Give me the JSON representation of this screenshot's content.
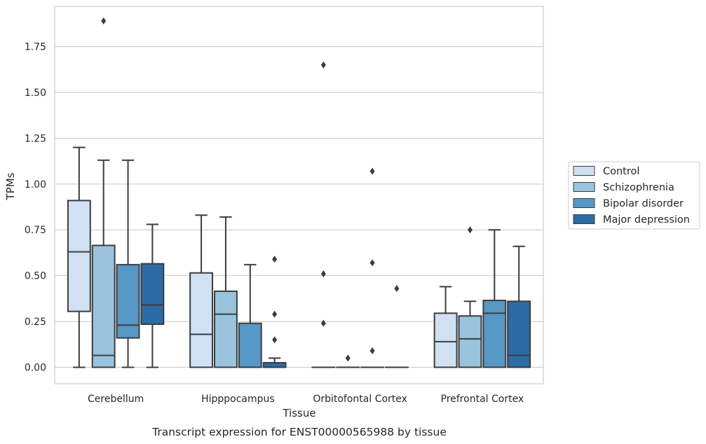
{
  "chart_data": {
    "type": "box",
    "title": "",
    "caption": "Transcript expression for ENST00000565988 by tissue",
    "xlabel": "Tissue",
    "ylabel": "TPMs",
    "ylim": [
      -0.09,
      1.97
    ],
    "yticks": [
      "0.00",
      "0.25",
      "0.50",
      "0.75",
      "1.00",
      "1.25",
      "1.50",
      "1.75"
    ],
    "grid": true,
    "legend_position": "right",
    "categories": [
      "Cerebellum",
      "Hipppocampus",
      "Orbitofontal Cortex",
      "Prefrontal Cortex"
    ],
    "series": [
      {
        "name": "Control",
        "color": "#cfe1f2",
        "boxes": [
          {
            "whislo": 0.0,
            "q1": 0.305,
            "med": 0.63,
            "q3": 0.91,
            "whishi": 1.2,
            "fliers": []
          },
          {
            "whislo": 0.0,
            "q1": 0.0,
            "med": 0.18,
            "q3": 0.515,
            "whishi": 0.83,
            "fliers": []
          },
          {
            "whislo": 0.0,
            "q1": 0.0,
            "med": 0.0,
            "q3": 0.0,
            "whishi": 0.0,
            "fliers": [
              1.65,
              0.51,
              0.24
            ]
          },
          {
            "whislo": 0.0,
            "q1": 0.0,
            "med": 0.14,
            "q3": 0.295,
            "whishi": 0.44,
            "fliers": []
          }
        ]
      },
      {
        "name": "Schizophrenia",
        "color": "#9ac4de",
        "boxes": [
          {
            "whislo": 0.0,
            "q1": 0.0,
            "med": 0.065,
            "q3": 0.665,
            "whishi": 1.13,
            "fliers": [
              1.89
            ]
          },
          {
            "whislo": 0.0,
            "q1": 0.0,
            "med": 0.29,
            "q3": 0.415,
            "whishi": 0.82,
            "fliers": []
          },
          {
            "whislo": 0.0,
            "q1": 0.0,
            "med": 0.0,
            "q3": 0.0,
            "whishi": 0.0,
            "fliers": [
              0.05
            ]
          },
          {
            "whislo": 0.0,
            "q1": 0.0,
            "med": 0.155,
            "q3": 0.28,
            "whishi": 0.36,
            "fliers": [
              0.75
            ]
          }
        ]
      },
      {
        "name": "Bipolar disorder",
        "color": "#5698c6",
        "boxes": [
          {
            "whislo": 0.0,
            "q1": 0.16,
            "med": 0.23,
            "q3": 0.56,
            "whishi": 1.13,
            "fliers": []
          },
          {
            "whislo": 0.0,
            "q1": 0.0,
            "med": 0.0,
            "q3": 0.24,
            "whishi": 0.56,
            "fliers": []
          },
          {
            "whislo": 0.0,
            "q1": 0.0,
            "med": 0.0,
            "q3": 0.0,
            "whishi": 0.0,
            "fliers": [
              1.07,
              0.57,
              0.09
            ]
          },
          {
            "whislo": 0.0,
            "q1": 0.0,
            "med": 0.295,
            "q3": 0.365,
            "whishi": 0.75,
            "fliers": []
          }
        ]
      },
      {
        "name": "Major depression",
        "color": "#2b6ba8",
        "boxes": [
          {
            "whislo": 0.0,
            "q1": 0.235,
            "med": 0.34,
            "q3": 0.565,
            "whishi": 0.78,
            "fliers": []
          },
          {
            "whislo": 0.0,
            "q1": 0.0,
            "med": 0.0,
            "q3": 0.025,
            "whishi": 0.05,
            "fliers": [
              0.59,
              0.29,
              0.15
            ]
          },
          {
            "whislo": 0.0,
            "q1": 0.0,
            "med": 0.0,
            "q3": 0.0,
            "whishi": 0.0,
            "fliers": [
              0.43
            ]
          },
          {
            "whislo": 0.0,
            "q1": 0.0,
            "med": 0.065,
            "q3": 0.36,
            "whishi": 0.66,
            "fliers": []
          }
        ]
      }
    ]
  }
}
